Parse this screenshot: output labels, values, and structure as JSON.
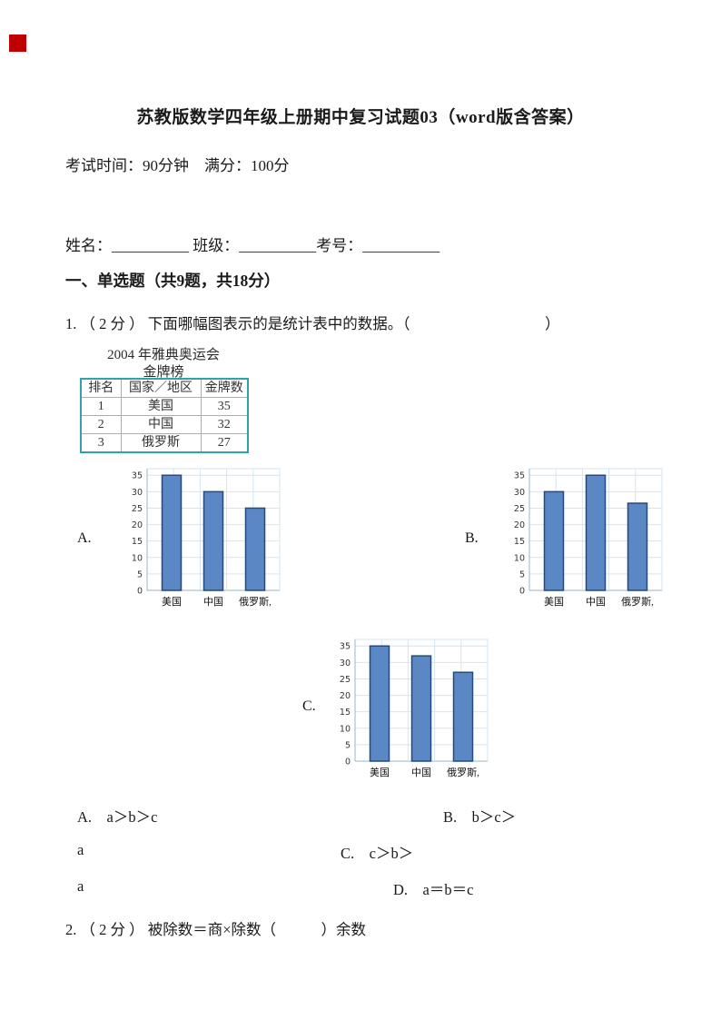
{
  "page": {
    "background": "#ffffff",
    "red_mark_color": "#c00000",
    "title": "苏教版数学四年级上册期中复习试题03（word版含答案）",
    "exam_info": "考试时间：90分钟　满分：100分",
    "name_line": "姓名：__________ 班级：__________考号：__________",
    "section_heading": "一、单选题（共9题，共18分）"
  },
  "question1": {
    "text": "1. （ 2 分 ） 下面哪幅图表示的是统计表中的数据。（　　　　　　　　　）"
  },
  "medal_table": {
    "title_line1": "2004 年雅典奥运会",
    "title_line2": "金牌榜",
    "border_color": "#2fa3a9",
    "headers": [
      "排名",
      "国家／地区",
      "金牌数"
    ],
    "rows": [
      [
        "1",
        "美国",
        "35"
      ],
      [
        "2",
        "中国",
        "32"
      ],
      [
        "3",
        "俄罗斯",
        "27"
      ]
    ]
  },
  "chart_data": [
    {
      "type": "bar",
      "option_label": "A.",
      "categories": [
        "美国",
        "中国",
        "俄罗斯,"
      ],
      "values": [
        35,
        30,
        25
      ],
      "yticks": [
        0,
        5,
        10,
        15,
        20,
        25,
        30,
        35
      ],
      "ylim": [
        0,
        37
      ],
      "title": "",
      "xlabel": "",
      "ylabel": "",
      "grid": true,
      "legend": "none",
      "bar_color": "#5b87c5",
      "bar_border": "#24497c",
      "grid_color": "#d3e5f2",
      "axis_color": "#9ab5c9"
    },
    {
      "type": "bar",
      "option_label": "B.",
      "categories": [
        "美国",
        "中国",
        "俄罗斯,"
      ],
      "values": [
        30,
        35,
        26.5
      ],
      "yticks": [
        0,
        5,
        10,
        15,
        20,
        25,
        30,
        35
      ],
      "ylim": [
        0,
        37
      ],
      "title": "",
      "xlabel": "",
      "ylabel": "",
      "grid": true,
      "legend": "none",
      "bar_color": "#5b87c5",
      "bar_border": "#24497c",
      "grid_color": "#d3e5f2",
      "axis_color": "#9ab5c9"
    },
    {
      "type": "bar",
      "option_label": "C.",
      "categories": [
        "美国",
        "中国",
        "俄罗斯,"
      ],
      "values": [
        35,
        32,
        27
      ],
      "yticks": [
        0,
        5,
        10,
        15,
        20,
        25,
        30,
        35
      ],
      "ylim": [
        0,
        37
      ],
      "title": "",
      "xlabel": "",
      "ylabel": "",
      "grid": true,
      "legend": "none",
      "bar_color": "#5b87c5",
      "bar_border": "#24497c",
      "grid_color": "#d3e5f2",
      "axis_color": "#9ab5c9"
    }
  ],
  "question1_options": {
    "row1_left": "A.　a＞b＞c",
    "row1_right": "B.　b＞c＞",
    "row2_left": "a",
    "row2_right": "C.　c＞b＞",
    "row3_left": "a",
    "row3_right": "D.　a＝b＝c"
  },
  "question2": {
    "text": "2. （ 2 分 ） 被除数＝商×除数（　　　）余数"
  }
}
